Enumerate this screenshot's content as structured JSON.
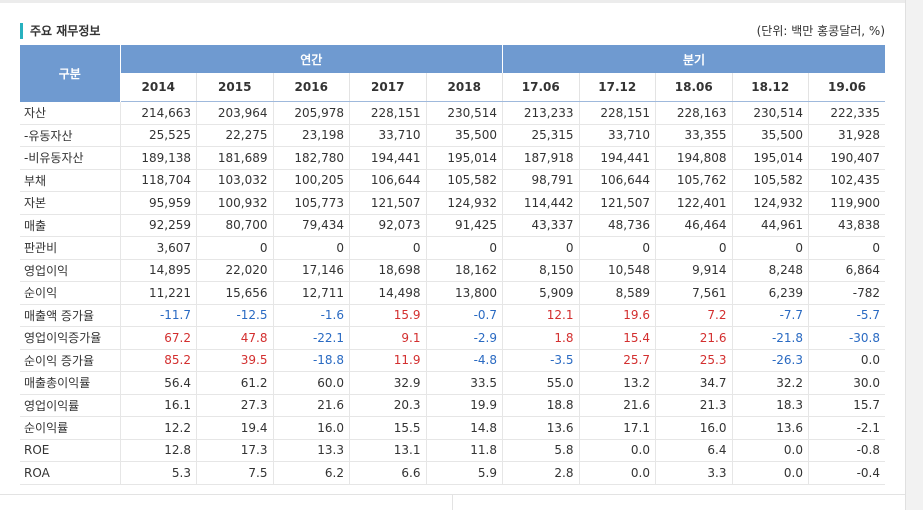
{
  "title": "주요 재무정보",
  "unit": "(단위: 백만 홍콩달러, %)",
  "corner": "구분",
  "group_annual": "연간",
  "group_quarter": "분기",
  "columns": [
    "2014",
    "2015",
    "2016",
    "2017",
    "2018",
    "17.06",
    "17.12",
    "18.06",
    "18.12",
    "19.06"
  ],
  "rows": [
    {
      "label": "자산",
      "values": [
        "214,663",
        "203,964",
        "205,978",
        "228,151",
        "230,514",
        "213,233",
        "228,151",
        "228,163",
        "230,514",
        "222,335"
      ]
    },
    {
      "label": "-유동자산",
      "values": [
        "25,525",
        "22,275",
        "23,198",
        "33,710",
        "35,500",
        "25,315",
        "33,710",
        "33,355",
        "35,500",
        "31,928"
      ]
    },
    {
      "label": "-비유동자산",
      "values": [
        "189,138",
        "181,689",
        "182,780",
        "194,441",
        "195,014",
        "187,918",
        "194,441",
        "194,808",
        "195,014",
        "190,407"
      ]
    },
    {
      "label": "부채",
      "values": [
        "118,704",
        "103,032",
        "100,205",
        "106,644",
        "105,582",
        "98,791",
        "106,644",
        "105,762",
        "105,582",
        "102,435"
      ]
    },
    {
      "label": "자본",
      "values": [
        "95,959",
        "100,932",
        "105,773",
        "121,507",
        "124,932",
        "114,442",
        "121,507",
        "122,401",
        "124,932",
        "119,900"
      ]
    },
    {
      "label": "매출",
      "values": [
        "92,259",
        "80,700",
        "79,434",
        "92,073",
        "91,425",
        "43,337",
        "48,736",
        "46,464",
        "44,961",
        "43,838"
      ]
    },
    {
      "label": "판관비",
      "values": [
        "3,607",
        "0",
        "0",
        "0",
        "0",
        "0",
        "0",
        "0",
        "0",
        "0"
      ]
    },
    {
      "label": "영업이익",
      "values": [
        "14,895",
        "22,020",
        "17,146",
        "18,698",
        "18,162",
        "8,150",
        "10,548",
        "9,914",
        "8,248",
        "6,864"
      ]
    },
    {
      "label": "순이익",
      "values": [
        "11,221",
        "15,656",
        "12,711",
        "14,498",
        "13,800",
        "5,909",
        "8,589",
        "7,561",
        "6,239",
        "-782"
      ]
    },
    {
      "label": "매출액 증가율",
      "colored": true,
      "values": [
        "-11.7",
        "-12.5",
        "-1.6",
        "15.9",
        "-0.7",
        "12.1",
        "19.6",
        "7.2",
        "-7.7",
        "-5.7"
      ]
    },
    {
      "label": "영업이익증가율",
      "colored": true,
      "values": [
        "67.2",
        "47.8",
        "-22.1",
        "9.1",
        "-2.9",
        "1.8",
        "15.4",
        "21.6",
        "-21.8",
        "-30.8"
      ]
    },
    {
      "label": "순이익 증가율",
      "colored": true,
      "values": [
        "85.2",
        "39.5",
        "-18.8",
        "11.9",
        "-4.8",
        "-3.5",
        "25.7",
        "25.3",
        "-26.3",
        "0.0"
      ]
    },
    {
      "label": "매출총이익률",
      "values": [
        "56.4",
        "61.2",
        "60.0",
        "32.9",
        "33.5",
        "55.0",
        "13.2",
        "34.7",
        "32.2",
        "30.0"
      ]
    },
    {
      "label": "영업이익률",
      "values": [
        "16.1",
        "27.3",
        "21.6",
        "20.3",
        "19.9",
        "18.8",
        "21.6",
        "21.3",
        "18.3",
        "15.7"
      ]
    },
    {
      "label": "순이익률",
      "values": [
        "12.2",
        "19.4",
        "16.0",
        "15.5",
        "14.8",
        "13.6",
        "17.1",
        "16.0",
        "13.6",
        "-2.1"
      ]
    },
    {
      "label": "ROE",
      "values": [
        "12.8",
        "17.3",
        "13.3",
        "13.1",
        "11.8",
        "5.8",
        "0.0",
        "6.4",
        "0.0",
        "-0.8"
      ]
    },
    {
      "label": "ROA",
      "values": [
        "5.3",
        "7.5",
        "6.2",
        "6.6",
        "5.9",
        "2.8",
        "0.0",
        "3.3",
        "0.0",
        "-0.4"
      ]
    }
  ],
  "colors": {
    "accent": "#27b1bf",
    "header": "#6f9ad0",
    "negative": "#2a6ac2",
    "positive": "#d32f2f"
  }
}
